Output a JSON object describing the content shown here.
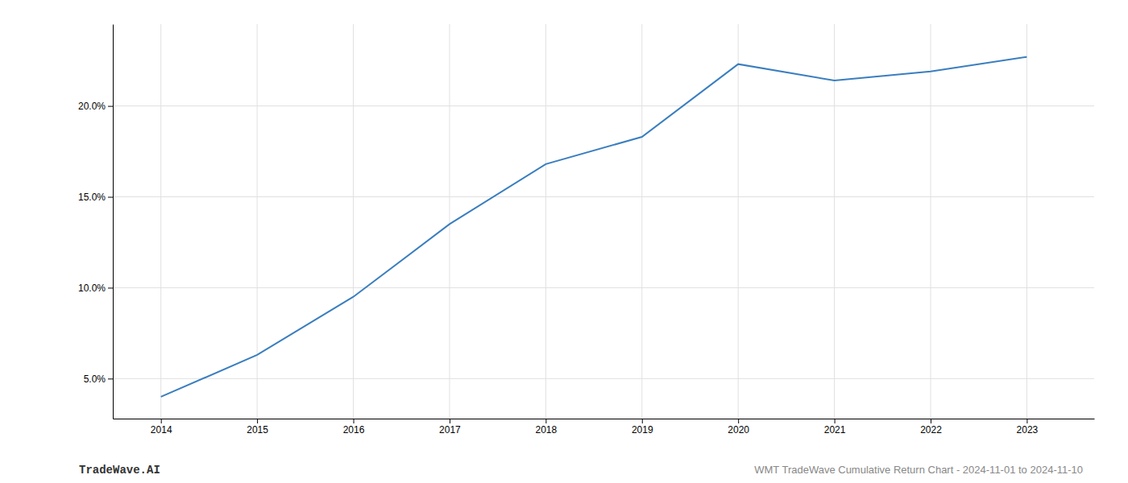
{
  "chart_data": {
    "type": "line",
    "x": [
      2014,
      2015,
      2016,
      2017,
      2018,
      2019,
      2020,
      2021,
      2022,
      2023
    ],
    "values": [
      4.0,
      6.3,
      9.5,
      13.5,
      16.8,
      18.3,
      22.3,
      21.4,
      21.9,
      22.7
    ],
    "color": "#3a7ebf",
    "xlim": [
      2013.5,
      2023.7
    ],
    "ylim": [
      2.8,
      24.5
    ],
    "xticks": [
      2014,
      2015,
      2016,
      2017,
      2018,
      2019,
      2020,
      2021,
      2022,
      2023
    ],
    "yticks": [
      {
        "value": 5.0,
        "label": "5.0%"
      },
      {
        "value": 10.0,
        "label": "10.0%"
      },
      {
        "value": 15.0,
        "label": "15.0%"
      },
      {
        "value": 20.0,
        "label": "20.0%"
      }
    ],
    "grid": true,
    "annotations": [
      "TradeWave.AI",
      "WMT TradeWave Cumulative Return Chart - 2024-11-01 to 2024-11-10"
    ]
  }
}
